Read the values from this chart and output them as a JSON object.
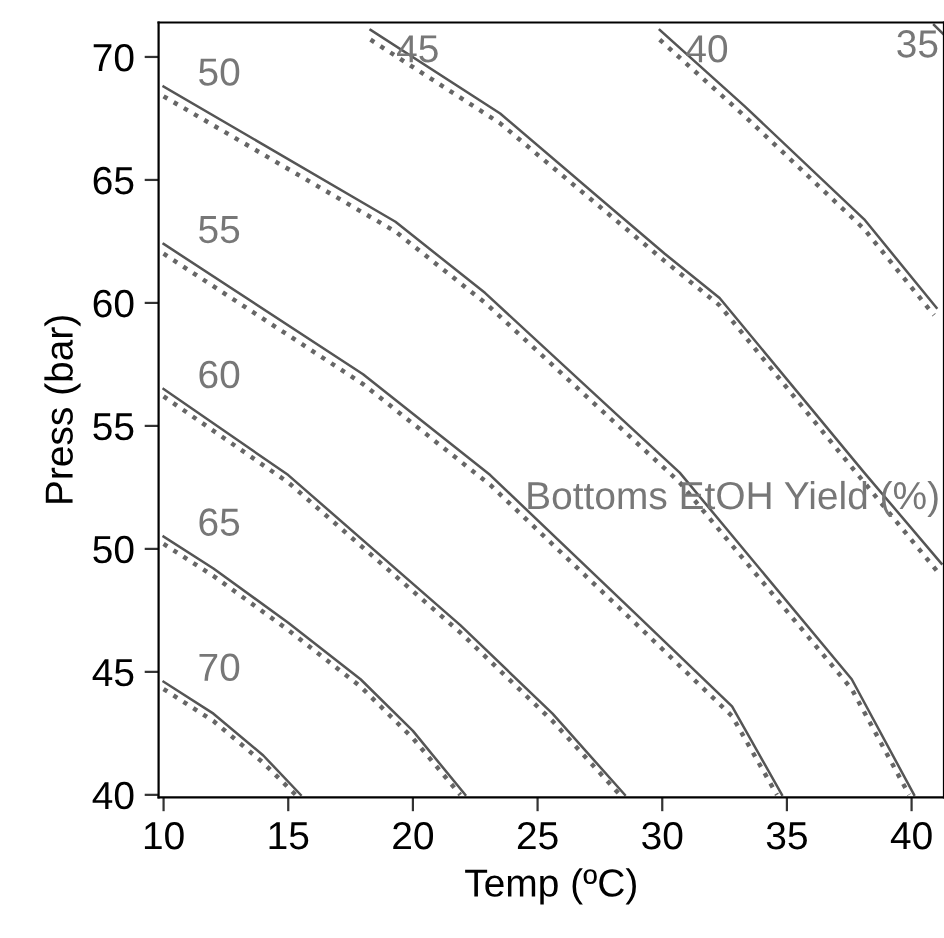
{
  "chart_data": {
    "type": "line",
    "xlabel": "Temp (ºC)",
    "ylabel": "Press (bar)",
    "xlim": [
      9.8,
      41.3
    ],
    "ylim": [
      39.9,
      71.4
    ],
    "xticks": [
      10,
      15,
      20,
      25,
      30,
      35,
      40
    ],
    "yticks": [
      40,
      45,
      50,
      55,
      60,
      65,
      70
    ],
    "grid": false,
    "legend": false,
    "marker": "none",
    "series": [
      {
        "name": "70",
        "color": "#555555",
        "line_style": "solid",
        "x": [
          10,
          12,
          14,
          15.5
        ],
        "values": [
          44.6,
          43.3,
          41.6,
          40
        ]
      },
      {
        "name": "65",
        "color": "#555555",
        "line_style": "solid",
        "x": [
          10,
          12,
          15,
          17.9,
          20,
          22.1
        ],
        "values": [
          50.5,
          49.2,
          47,
          44.7,
          42.6,
          40
        ]
      },
      {
        "name": "60",
        "color": "#555555",
        "line_style": "solid",
        "x": [
          10,
          15,
          21.9,
          25.6,
          28.5
        ],
        "values": [
          56.5,
          53.0,
          46.9,
          43.3,
          40
        ]
      },
      {
        "name": "55",
        "color": "#555555",
        "line_style": "solid",
        "x": [
          10,
          18,
          23.1,
          29,
          32.8,
          34.8
        ],
        "values": [
          62.4,
          57.1,
          53.0,
          47.3,
          43.6,
          40
        ]
      },
      {
        "name": "50",
        "color": "#555555",
        "line_style": "solid",
        "x": [
          10,
          19.3,
          22.9,
          30.7,
          37.6,
          40.1
        ],
        "values": [
          68.8,
          63.3,
          60.4,
          53.1,
          44.7,
          40
        ]
      },
      {
        "name": "45",
        "color": "#555555",
        "line_style": "solid",
        "x": [
          18.3,
          23.5,
          30.1,
          32.3,
          38.1,
          41.2
        ],
        "values": [
          71.1,
          67.7,
          62.0,
          60.2,
          53.1,
          49.4
        ]
      },
      {
        "name": "40",
        "color": "#555555",
        "line_style": "solid",
        "x": [
          29.9,
          33.3,
          38.1,
          41.0
        ],
        "values": [
          71.1,
          68.0,
          63.4,
          59.8
        ]
      },
      {
        "name": "35",
        "color": "#555555",
        "line_style": "solid",
        "x": [
          40.9,
          41.3
        ],
        "values": [
          71.3,
          70.9
        ]
      },
      {
        "color": "#666666",
        "line_style": "dotted",
        "x": [
          10,
          12,
          14,
          15.3
        ],
        "values": [
          44.3,
          43.0,
          41.3,
          40
        ]
      },
      {
        "color": "#666666",
        "line_style": "dotted",
        "x": [
          10,
          12,
          15,
          17.9,
          20,
          21.9
        ],
        "values": [
          50.2,
          48.9,
          46.7,
          44.4,
          42.3,
          40
        ]
      },
      {
        "color": "#666666",
        "line_style": "dotted",
        "x": [
          10,
          15,
          21.9,
          25.6,
          28.3
        ],
        "values": [
          56.2,
          52.7,
          46.6,
          43.0,
          40
        ]
      },
      {
        "color": "#666666",
        "line_style": "dotted",
        "x": [
          10,
          18,
          23.1,
          29,
          32.8,
          34.6
        ],
        "values": [
          62.0,
          56.7,
          52.6,
          46.9,
          43.2,
          40
        ]
      },
      {
        "color": "#666666",
        "line_style": "dotted",
        "x": [
          10,
          19.3,
          22.9,
          30.7,
          37.6,
          39.9
        ],
        "values": [
          68.4,
          62.9,
          60.0,
          52.7,
          44.3,
          40
        ]
      },
      {
        "color": "#666666",
        "line_style": "dotted",
        "x": [
          18.3,
          23.5,
          30.1,
          32.3,
          38.1,
          41.1
        ],
        "values": [
          70.7,
          67.3,
          61.7,
          59.9,
          52.7,
          49.0
        ]
      },
      {
        "color": "#666666",
        "line_style": "dotted",
        "x": [
          29.9,
          33.3,
          38.1,
          40.9
        ],
        "values": [
          70.7,
          67.6,
          63.0,
          59.5
        ]
      }
    ],
    "annotations": [
      "Bottoms EtOH Yield (%)"
    ]
  }
}
